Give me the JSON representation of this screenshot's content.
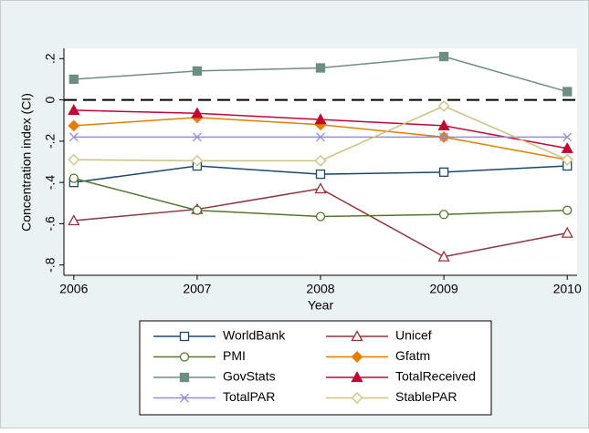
{
  "chart_data": {
    "type": "line",
    "y_label": "Concentration index (CI)",
    "x_label": "Year",
    "x": [
      2006,
      2007,
      2008,
      2009,
      2010
    ],
    "xlim": [
      2005.92,
      2010.08
    ],
    "xticks": [
      2006,
      2007,
      2008,
      2009,
      2010
    ],
    "ylim": [
      -0.85,
      0.25
    ],
    "yticks": [
      {
        "value": 0.2,
        "label": ".2"
      },
      0,
      {
        "value": -0.2,
        "label": "-.2"
      },
      {
        "value": -0.4,
        "label": "-.4"
      },
      {
        "value": -0.6,
        "label": "-.6"
      },
      {
        "value": -0.8,
        "label": "-.8"
      }
    ],
    "reference_line": 0,
    "series": [
      {
        "name": "WorldBank",
        "color": "#1a476f",
        "marker": "square-hollow",
        "values": [
          -0.4,
          -0.32,
          -0.36,
          -0.35,
          -0.32
        ]
      },
      {
        "name": "Unicef",
        "color": "#90353b",
        "marker": "triangle-hollow",
        "values": [
          -0.585,
          -0.53,
          -0.43,
          -0.76,
          -0.645
        ]
      },
      {
        "name": "PMI",
        "color": "#55752f",
        "marker": "circle-hollow",
        "values": [
          -0.38,
          -0.535,
          -0.565,
          -0.555,
          -0.535
        ]
      },
      {
        "name": "Gfatm",
        "color": "#e37e00",
        "marker": "diamond",
        "values": [
          -0.125,
          -0.085,
          -0.12,
          -0.18,
          -0.29
        ]
      },
      {
        "name": "GovStats",
        "color": "#6e8e84",
        "marker": "square",
        "values": [
          0.1,
          0.14,
          0.155,
          0.21,
          0.04
        ]
      },
      {
        "name": "TotalReceived",
        "color": "#c10534",
        "marker": "triangle",
        "values": [
          -0.05,
          -0.065,
          -0.095,
          -0.125,
          -0.235
        ]
      },
      {
        "name": "TotalPAR",
        "color": "#938dd2",
        "marker": "x",
        "values": [
          -0.18,
          -0.18,
          -0.18,
          -0.18,
          -0.18
        ]
      },
      {
        "name": "StablePAR",
        "color": "#cac27e",
        "marker": "diamond-hollow",
        "values": [
          -0.29,
          -0.295,
          -0.295,
          -0.03,
          -0.29
        ]
      }
    ]
  }
}
